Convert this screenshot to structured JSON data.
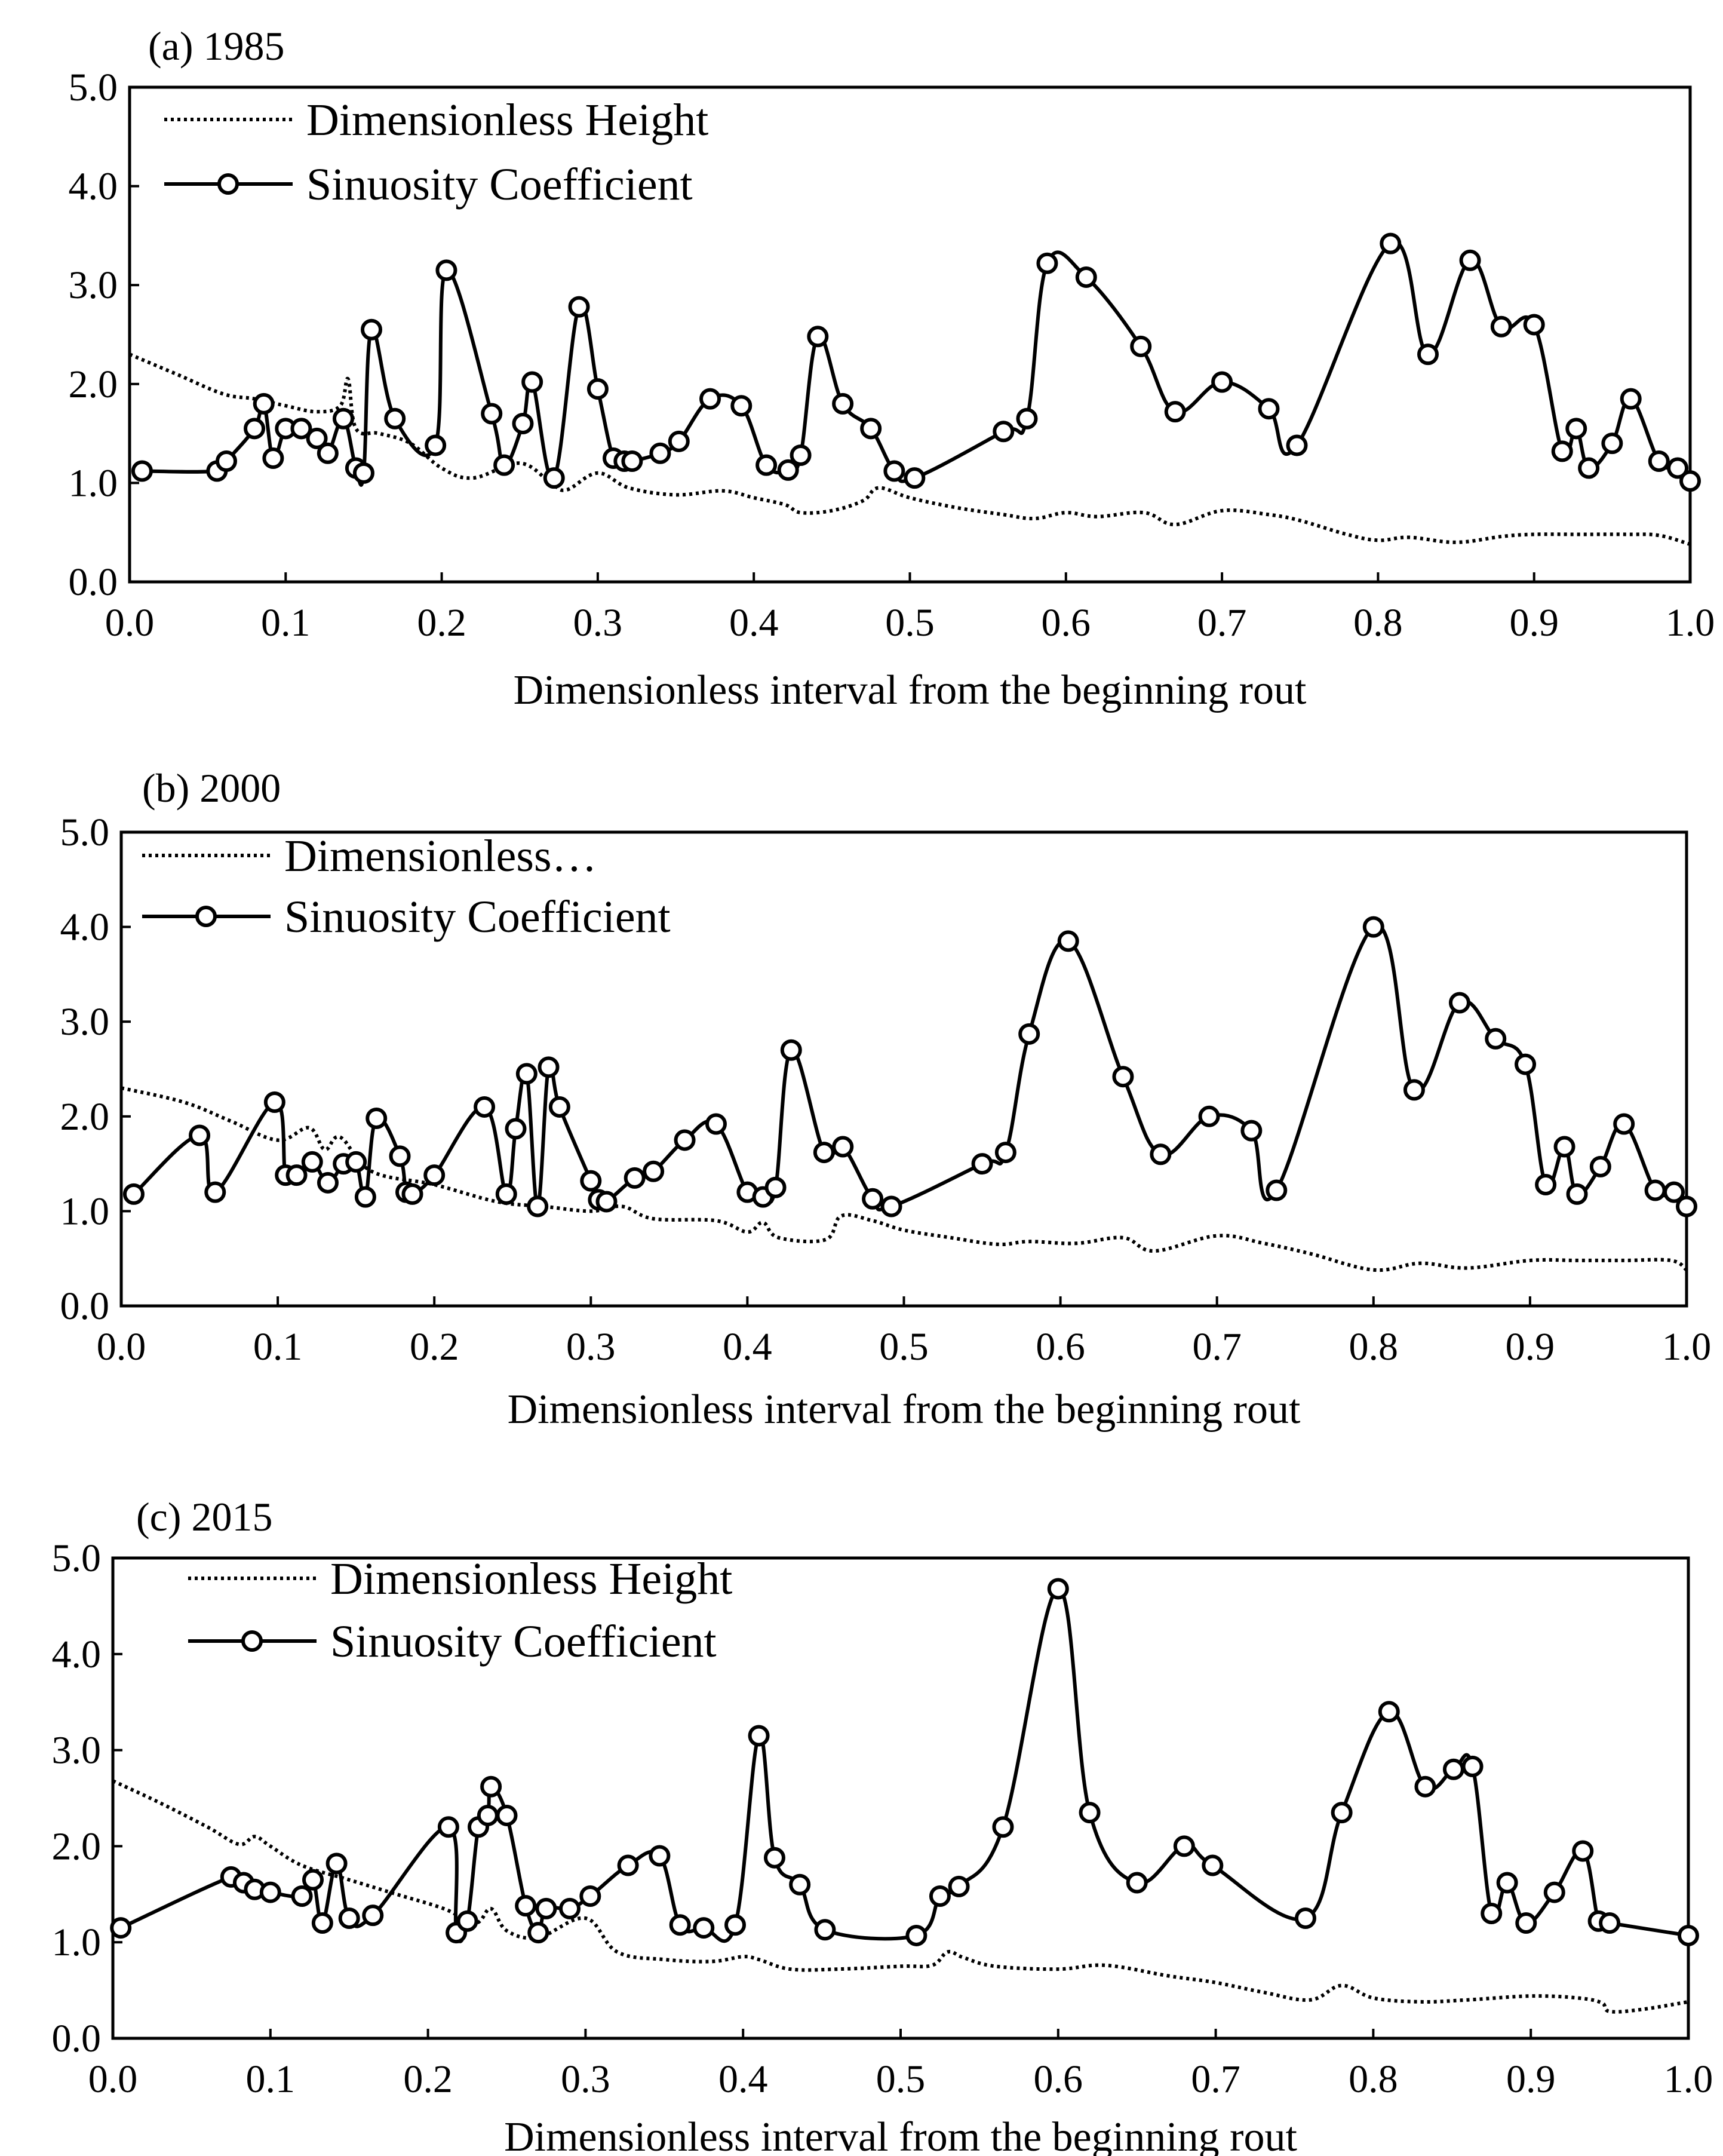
{
  "chart_data": [
    {
      "type": "line",
      "title": "(a) 1985",
      "xlabel": "Dimensionless interval from the beginning rout",
      "ylabel": "",
      "xlim": [
        0.0,
        1.0
      ],
      "ylim": [
        0.0,
        5.0
      ],
      "xticks": [
        "0.0",
        "0.1",
        "0.2",
        "0.3",
        "0.4",
        "0.5",
        "0.6",
        "0.7",
        "0.8",
        "0.9",
        "1.0"
      ],
      "yticks": [
        "0.0",
        "1.0",
        "2.0",
        "3.0",
        "4.0",
        "5.0"
      ],
      "legend": [
        "Dimensionless Height",
        "Sinuosity Coefficient"
      ],
      "series": [
        {
          "name": "Dimensionless Height",
          "style": "dotted",
          "x": [
            0.0,
            0.03,
            0.06,
            0.08,
            0.1,
            0.12,
            0.135,
            0.14,
            0.145,
            0.16,
            0.18,
            0.2,
            0.22,
            0.25,
            0.27,
            0.28,
            0.3,
            0.32,
            0.35,
            0.38,
            0.4,
            0.42,
            0.43,
            0.45,
            0.47,
            0.48,
            0.5,
            0.53,
            0.56,
            0.58,
            0.6,
            0.62,
            0.65,
            0.67,
            0.7,
            0.73,
            0.75,
            0.78,
            0.8,
            0.82,
            0.85,
            0.88,
            0.9,
            0.93,
            0.96,
            0.98,
            1.0
          ],
          "y": [
            2.3,
            2.1,
            1.9,
            1.85,
            1.78,
            1.72,
            1.78,
            2.05,
            1.55,
            1.5,
            1.4,
            1.15,
            1.05,
            1.2,
            1.0,
            0.93,
            1.1,
            0.95,
            0.88,
            0.92,
            0.85,
            0.78,
            0.7,
            0.72,
            0.82,
            0.95,
            0.85,
            0.75,
            0.68,
            0.64,
            0.7,
            0.66,
            0.7,
            0.58,
            0.72,
            0.68,
            0.62,
            0.48,
            0.42,
            0.45,
            0.4,
            0.46,
            0.48,
            0.48,
            0.48,
            0.47,
            0.38
          ]
        },
        {
          "name": "Sinuosity Coefficient",
          "style": "solid-circle",
          "x": [
            0.008,
            0.056,
            0.062,
            0.08,
            0.086,
            0.092,
            0.1,
            0.11,
            0.12,
            0.127,
            0.137,
            0.145,
            0.15,
            0.155,
            0.17,
            0.196,
            0.203,
            0.232,
            0.24,
            0.252,
            0.258,
            0.272,
            0.288,
            0.3,
            0.31,
            0.317,
            0.322,
            0.34,
            0.352,
            0.372,
            0.392,
            0.408,
            0.422,
            0.43,
            0.441,
            0.457,
            0.475,
            0.49,
            0.503,
            0.56,
            0.575,
            0.588,
            0.613,
            0.648,
            0.67,
            0.7,
            0.73,
            0.748,
            0.808,
            0.832,
            0.859,
            0.879,
            0.9,
            0.918,
            0.927,
            0.935,
            0.95,
            0.962,
            0.98,
            0.992,
            1.0
          ],
          "y": [
            1.12,
            1.12,
            1.22,
            1.55,
            1.8,
            1.25,
            1.55,
            1.55,
            1.45,
            1.3,
            1.65,
            1.15,
            1.1,
            2.55,
            1.65,
            1.38,
            3.15,
            1.7,
            1.18,
            1.6,
            2.02,
            1.05,
            2.78,
            1.95,
            1.25,
            1.22,
            1.22,
            1.3,
            1.42,
            1.85,
            1.78,
            1.18,
            1.13,
            1.28,
            2.48,
            1.8,
            1.55,
            1.12,
            1.05,
            1.52,
            1.65,
            3.22,
            3.08,
            2.38,
            1.72,
            2.02,
            1.75,
            1.38,
            3.42,
            2.3,
            3.25,
            2.58,
            2.6,
            1.32,
            1.55,
            1.15,
            1.4,
            1.85,
            1.22,
            1.15,
            1.02
          ]
        }
      ]
    },
    {
      "type": "line",
      "title": "(b) 2000",
      "xlabel": "Dimensionless interval from the beginning rout",
      "ylabel": "",
      "xlim": [
        0.0,
        1.0
      ],
      "ylim": [
        0.0,
        5.0
      ],
      "xticks": [
        "0.0",
        "0.1",
        "0.2",
        "0.3",
        "0.4",
        "0.5",
        "0.6",
        "0.7",
        "0.8",
        "0.9",
        "1.0"
      ],
      "yticks": [
        "0.0",
        "1.0",
        "2.0",
        "3.0",
        "4.0",
        "5.0"
      ],
      "legend": [
        "Dimensionless…",
        "Sinuosity Coefficient"
      ],
      "series": [
        {
          "name": "Dimensionless…",
          "style": "dotted",
          "x": [
            0.0,
            0.04,
            0.07,
            0.1,
            0.12,
            0.13,
            0.14,
            0.16,
            0.2,
            0.24,
            0.27,
            0.3,
            0.32,
            0.34,
            0.38,
            0.4,
            0.41,
            0.42,
            0.45,
            0.46,
            0.48,
            0.5,
            0.53,
            0.56,
            0.58,
            0.61,
            0.64,
            0.66,
            0.7,
            0.73,
            0.76,
            0.8,
            0.83,
            0.86,
            0.9,
            0.93,
            0.96,
            0.99,
            1.0
          ],
          "y": [
            2.3,
            2.15,
            1.95,
            1.75,
            1.88,
            1.65,
            1.78,
            1.42,
            1.28,
            1.1,
            1.05,
            1.0,
            1.05,
            0.92,
            0.9,
            0.78,
            0.88,
            0.72,
            0.7,
            0.95,
            0.9,
            0.8,
            0.72,
            0.65,
            0.68,
            0.66,
            0.72,
            0.58,
            0.74,
            0.66,
            0.55,
            0.38,
            0.45,
            0.4,
            0.48,
            0.48,
            0.48,
            0.48,
            0.38
          ]
        },
        {
          "name": "Sinuosity Coefficient",
          "style": "solid-circle",
          "x": [
            0.008,
            0.05,
            0.06,
            0.098,
            0.105,
            0.112,
            0.122,
            0.132,
            0.142,
            0.15,
            0.156,
            0.163,
            0.178,
            0.182,
            0.186,
            0.2,
            0.232,
            0.246,
            0.252,
            0.259,
            0.266,
            0.273,
            0.28,
            0.3,
            0.305,
            0.31,
            0.328,
            0.34,
            0.36,
            0.38,
            0.4,
            0.41,
            0.418,
            0.428,
            0.449,
            0.461,
            0.48,
            0.492,
            0.55,
            0.565,
            0.58,
            0.605,
            0.64,
            0.664,
            0.695,
            0.722,
            0.738,
            0.8,
            0.826,
            0.855,
            0.878,
            0.897,
            0.91,
            0.922,
            0.93,
            0.945,
            0.96,
            0.98,
            0.992,
            1.0
          ],
          "y": [
            1.18,
            1.8,
            1.2,
            2.15,
            1.38,
            1.38,
            1.52,
            1.3,
            1.5,
            1.52,
            1.15,
            1.98,
            1.58,
            1.2,
            1.18,
            1.38,
            2.1,
            1.18,
            1.87,
            2.45,
            1.05,
            2.52,
            2.1,
            1.32,
            1.12,
            1.1,
            1.35,
            1.42,
            1.75,
            1.92,
            1.2,
            1.15,
            1.25,
            2.7,
            1.62,
            1.68,
            1.13,
            1.05,
            1.5,
            1.62,
            2.87,
            3.85,
            2.42,
            1.6,
            2.0,
            1.85,
            1.22,
            4.0,
            2.28,
            3.2,
            2.82,
            2.55,
            1.28,
            1.68,
            1.18,
            1.47,
            1.92,
            1.22,
            1.2,
            1.05
          ]
        }
      ]
    },
    {
      "type": "line",
      "title": "(c) 2015",
      "xlabel": "Dimensionless interval from the beginning rout",
      "ylabel": "",
      "xlim": [
        0.0,
        1.0
      ],
      "ylim": [
        0.0,
        5.0
      ],
      "xticks": [
        "0.0",
        "0.1",
        "0.2",
        "0.3",
        "0.4",
        "0.5",
        "0.6",
        "0.7",
        "0.8",
        "0.9",
        "1.0"
      ],
      "yticks": [
        "0.0",
        "1.0",
        "2.0",
        "3.0",
        "4.0",
        "5.0"
      ],
      "legend": [
        "Dimensionless Height",
        "Sinuosity Coefficient"
      ],
      "series": [
        {
          "name": "Dimensionless Height",
          "style": "dotted",
          "x": [
            0.0,
            0.03,
            0.06,
            0.08,
            0.09,
            0.1,
            0.12,
            0.15,
            0.18,
            0.21,
            0.23,
            0.24,
            0.25,
            0.27,
            0.3,
            0.32,
            0.35,
            0.38,
            0.4,
            0.41,
            0.43,
            0.46,
            0.5,
            0.52,
            0.53,
            0.54,
            0.56,
            0.6,
            0.63,
            0.67,
            0.7,
            0.73,
            0.76,
            0.78,
            0.8,
            0.83,
            0.86,
            0.9,
            0.93,
            0.945,
            0.95,
            0.97,
            1.0
          ],
          "y": [
            2.68,
            2.45,
            2.2,
            2.02,
            2.1,
            2.0,
            1.8,
            1.65,
            1.5,
            1.35,
            1.2,
            1.35,
            1.12,
            1.05,
            1.25,
            0.9,
            0.82,
            0.8,
            0.85,
            0.82,
            0.72,
            0.72,
            0.75,
            0.76,
            0.9,
            0.84,
            0.75,
            0.72,
            0.76,
            0.65,
            0.58,
            0.48,
            0.4,
            0.55,
            0.42,
            0.38,
            0.4,
            0.44,
            0.42,
            0.37,
            0.28,
            0.3,
            0.38
          ]
        },
        {
          "name": "Sinuosity Coefficient",
          "style": "solid-circle",
          "x": [
            0.005,
            0.075,
            0.083,
            0.09,
            0.1,
            0.12,
            0.127,
            0.133,
            0.142,
            0.15,
            0.165,
            0.213,
            0.218,
            0.225,
            0.232,
            0.238,
            0.24,
            0.25,
            0.262,
            0.27,
            0.275,
            0.29,
            0.303,
            0.327,
            0.347,
            0.36,
            0.375,
            0.395,
            0.41,
            0.42,
            0.436,
            0.452,
            0.51,
            0.525,
            0.537,
            0.565,
            0.6,
            0.62,
            0.65,
            0.68,
            0.698,
            0.757,
            0.78,
            0.81,
            0.833,
            0.851,
            0.863,
            0.875,
            0.885,
            0.897,
            0.915,
            0.933,
            0.943,
            0.95,
            1.0
          ],
          "y": [
            1.15,
            1.68,
            1.62,
            1.55,
            1.52,
            1.48,
            1.65,
            1.2,
            1.82,
            1.25,
            1.28,
            2.2,
            1.1,
            1.22,
            2.2,
            2.32,
            2.62,
            2.32,
            1.38,
            1.1,
            1.35,
            1.35,
            1.48,
            1.8,
            1.9,
            1.18,
            1.15,
            1.18,
            3.15,
            1.88,
            1.6,
            1.13,
            1.07,
            1.48,
            1.58,
            2.2,
            4.68,
            2.35,
            1.62,
            2.0,
            1.8,
            1.25,
            2.35,
            3.4,
            2.62,
            2.8,
            2.83,
            1.3,
            1.62,
            1.2,
            1.52,
            1.95,
            1.22,
            1.2,
            1.07
          ]
        }
      ]
    }
  ]
}
